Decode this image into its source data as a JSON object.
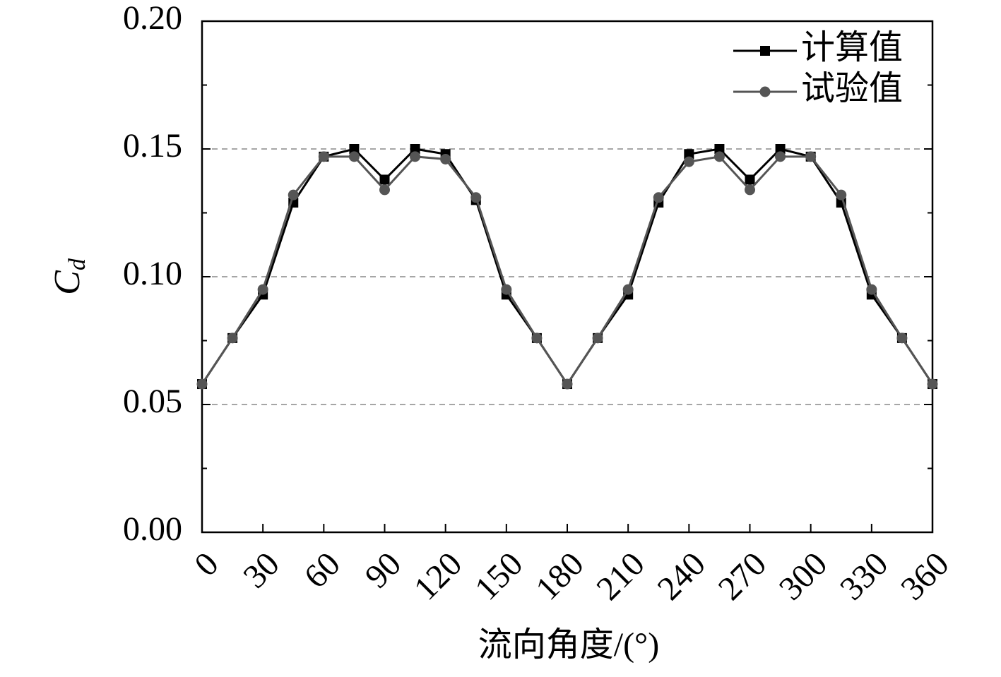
{
  "chart_data": {
    "type": "line",
    "x_label": "流向角度/(°)",
    "y_label": {
      "base": "C",
      "subscript": "d"
    },
    "x": [
      0,
      15,
      30,
      45,
      60,
      75,
      90,
      105,
      120,
      135,
      150,
      165,
      180,
      195,
      210,
      225,
      240,
      255,
      270,
      285,
      300,
      315,
      330,
      345,
      360
    ],
    "series": [
      {
        "name": "计算值",
        "color": "#000000",
        "marker": "square",
        "values": [
          0.058,
          0.076,
          0.093,
          0.129,
          0.147,
          0.15,
          0.138,
          0.15,
          0.148,
          0.13,
          0.093,
          0.076,
          0.058,
          0.076,
          0.093,
          0.129,
          0.148,
          0.15,
          0.138,
          0.15,
          0.147,
          0.129,
          0.093,
          0.076,
          0.058
        ]
      },
      {
        "name": "试验值",
        "color": "#555555",
        "marker": "circle",
        "values": [
          0.058,
          0.076,
          0.095,
          0.132,
          0.147,
          0.147,
          0.134,
          0.147,
          0.146,
          0.131,
          0.095,
          0.076,
          0.058,
          0.076,
          0.095,
          0.131,
          0.145,
          0.147,
          0.134,
          0.147,
          0.147,
          0.132,
          0.095,
          0.076,
          0.058
        ]
      }
    ],
    "xlim": [
      0,
      360
    ],
    "xticks": [
      0,
      30,
      60,
      90,
      120,
      150,
      180,
      210,
      240,
      270,
      300,
      330,
      360
    ],
    "ylim": [
      0,
      0.2
    ],
    "yticks": [
      {
        "value": 0,
        "label": "0.00"
      },
      0.05,
      {
        "value": 0.1,
        "label": "0.10"
      },
      0.15,
      {
        "value": 0.2,
        "label": "0.20"
      }
    ],
    "grid": true,
    "legend": "upper right"
  }
}
